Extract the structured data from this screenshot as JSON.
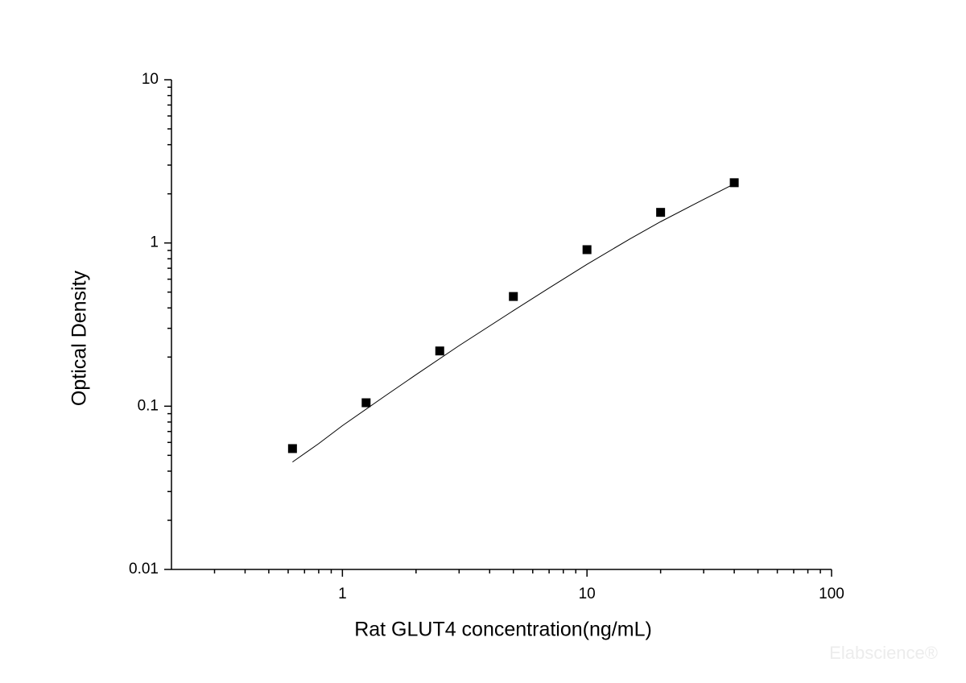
{
  "chart_data": {
    "type": "scatter",
    "x_label": "Rat GLUT4 concentration(ng/mL)",
    "y_label": "Optical Density",
    "watermark": "Elabscience®",
    "x": [
      0.625,
      1.25,
      2.5,
      5,
      10,
      20,
      40
    ],
    "values": [
      0.055,
      0.105,
      0.218,
      0.47,
      0.91,
      1.54,
      2.34
    ],
    "color": "#000000",
    "fit": {
      "x": [
        0.625,
        0.8,
        1,
        1.5,
        2,
        3,
        5,
        7,
        10,
        15,
        20,
        30,
        40
      ],
      "values": [
        0.0455,
        0.059,
        0.076,
        0.116,
        0.156,
        0.235,
        0.385,
        0.53,
        0.74,
        1.06,
        1.35,
        1.85,
        2.3
      ],
      "color": "#000000"
    },
    "xscale": "log",
    "yscale": "log",
    "xlim": [
      0.2,
      100
    ],
    "ylim": [
      0.01,
      10
    ],
    "xticks": [
      1,
      10,
      100
    ],
    "yticks": [
      0.01,
      0.1,
      1,
      10
    ],
    "xminorticks": [
      0.3,
      0.4,
      0.5,
      0.6,
      0.7,
      0.8,
      0.9,
      2,
      3,
      4,
      5,
      6,
      7,
      8,
      9,
      20,
      30,
      40,
      50,
      60,
      70,
      80,
      90
    ],
    "yminorticks": [
      0.02,
      0.03,
      0.04,
      0.05,
      0.06,
      0.07,
      0.08,
      0.09,
      0.2,
      0.3,
      0.4,
      0.5,
      0.6,
      0.7,
      0.8,
      0.9,
      2,
      3,
      4,
      5,
      6,
      7,
      8,
      9
    ]
  }
}
